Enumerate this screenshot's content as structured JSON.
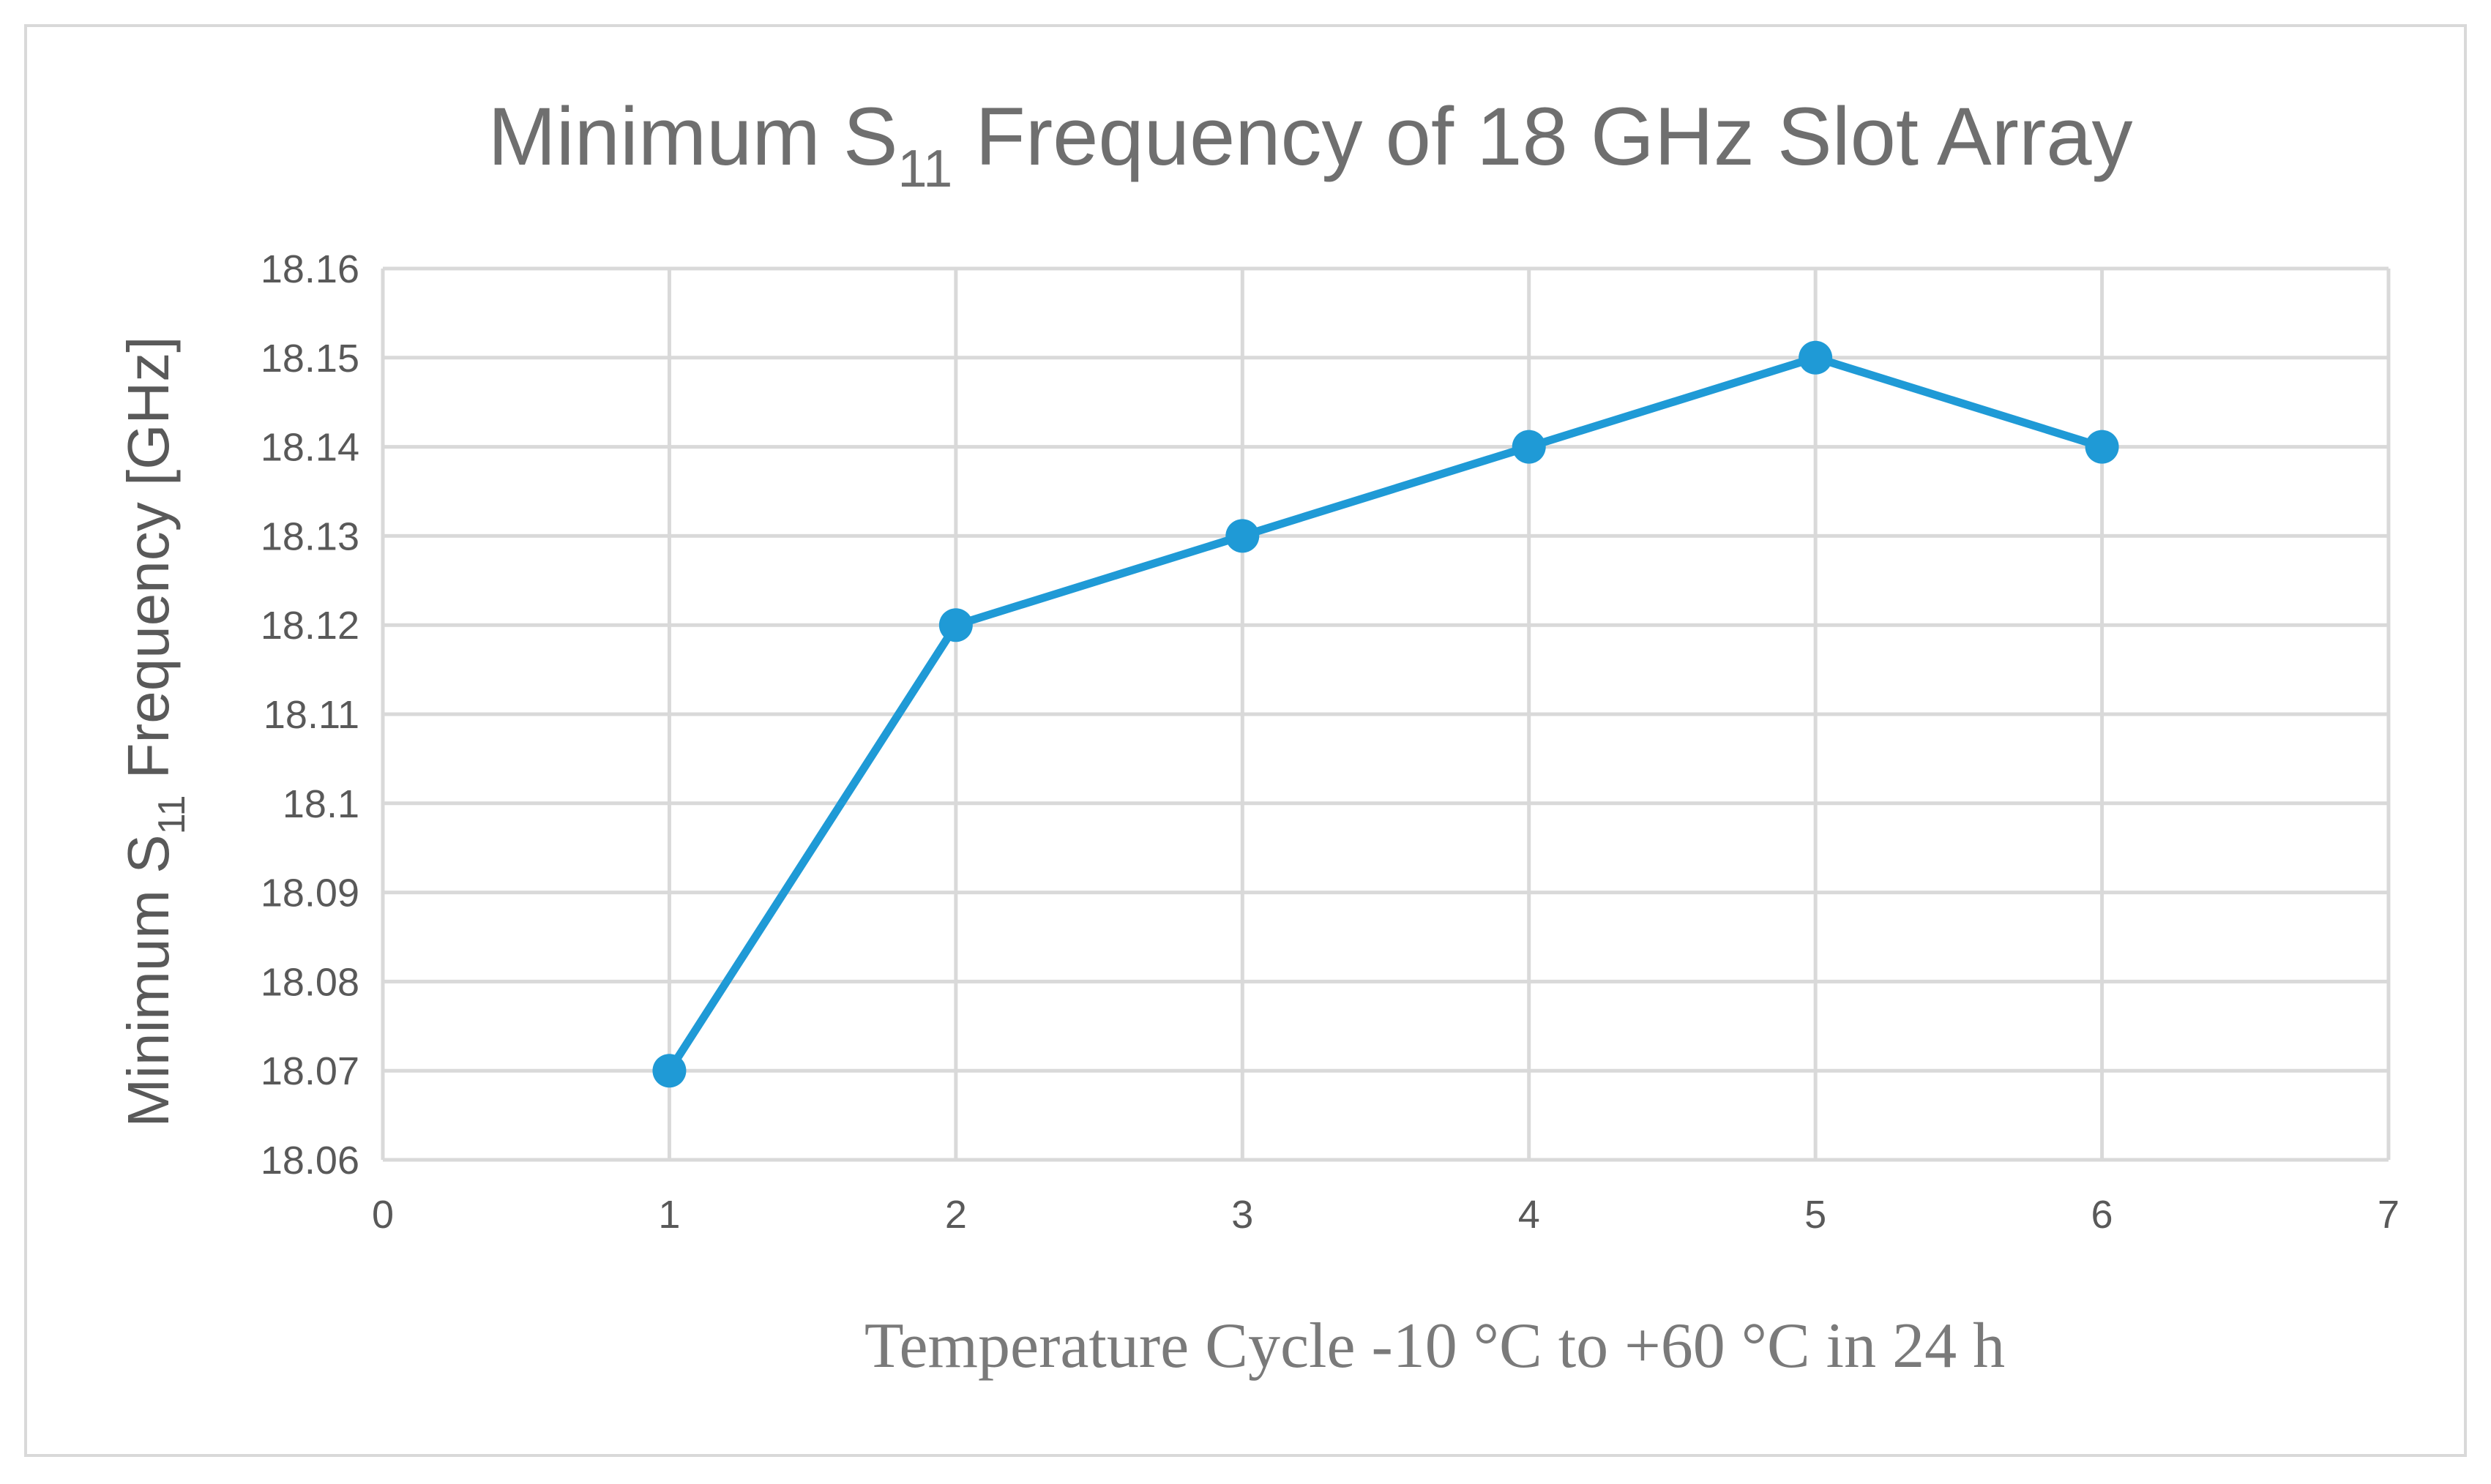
{
  "chart_data": {
    "type": "scatter",
    "title_main": "Minimum S",
    "title_sub": "11",
    "title_rest": " Frequency of 18 GHz Slot Array",
    "ylabel_main": "Minimum S",
    "ylabel_sub": "11",
    "ylabel_rest": "  Frequency [GHz]",
    "xlabel": "Temperature Cycle -10 °C  to +60 °C  in 24 h",
    "xlim": [
      0,
      7
    ],
    "ylim": [
      18.06,
      18.16
    ],
    "x_ticks": [
      "0",
      "1",
      "2",
      "3",
      "4",
      "5",
      "6",
      "7"
    ],
    "y_ticks": [
      "18.06",
      "18.07",
      "18.08",
      "18.09",
      "18.1",
      "18.11",
      "18.12",
      "18.13",
      "18.14",
      "18.15",
      "18.16"
    ],
    "grid": true,
    "series": [
      {
        "name": "Minimum S11 Frequency",
        "x": [
          1,
          2,
          3,
          4,
          5,
          6
        ],
        "y": [
          18.07,
          18.12,
          18.13,
          18.14,
          18.15,
          18.14
        ],
        "color": "#1f9ad6"
      }
    ],
    "grid_color": "#d9d9d9"
  }
}
